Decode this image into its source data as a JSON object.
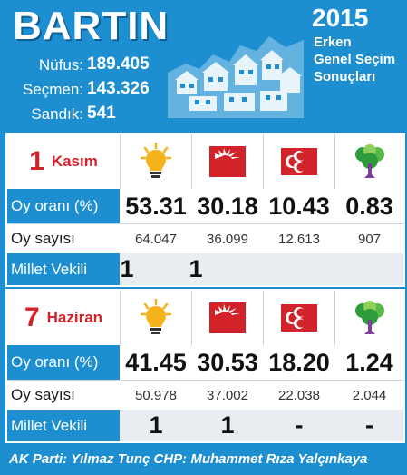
{
  "header": {
    "title": "BARTIN",
    "year": "2015",
    "subtitle_lines": [
      "Erken",
      "Genel Seçim",
      "Sonuçları"
    ],
    "stats": [
      {
        "label": "Nüfus:",
        "value": "189.405"
      },
      {
        "label": "Seçmen:",
        "value": "143.326"
      },
      {
        "label": "Sandık:",
        "value": "541"
      }
    ]
  },
  "parties": [
    {
      "icon": "ak-parti-logo-icon"
    },
    {
      "icon": "chp-logo-icon"
    },
    {
      "icon": "mhp-logo-icon"
    },
    {
      "icon": "hdp-logo-icon"
    }
  ],
  "elections": [
    {
      "date_num": "1",
      "date_month": "Kasım",
      "rows": {
        "oy_orani": {
          "label": "Oy oranı (%)",
          "values": [
            "53.31",
            "30.18",
            "10.43",
            "0.83"
          ]
        },
        "oy_sayisi": {
          "label": "Oy sayısı",
          "values": [
            "64.047",
            "36.099",
            "12.613",
            "907"
          ]
        },
        "milletvekili": {
          "label": "Millet Vekili",
          "values": [
            "1",
            "1",
            "",
            ""
          ]
        }
      }
    },
    {
      "date_num": "7",
      "date_month": "Haziran",
      "rows": {
        "oy_orani": {
          "label": "Oy oranı (%)",
          "values": [
            "41.45",
            "30.53",
            "18.20",
            "1.24"
          ]
        },
        "oy_sayisi": {
          "label": "Oy sayısı",
          "values": [
            "50.978",
            "37.002",
            "22.038",
            "2.044"
          ]
        },
        "milletvekili": {
          "label": "Millet Vekili",
          "values": [
            "1",
            "1",
            "-",
            "-"
          ]
        }
      }
    }
  ],
  "footer": {
    "text": "AK Parti: Yılmaz Tunç CHP: Muhammet Rıza Yalçınkaya"
  },
  "colors": {
    "brand_blue": "#1d8fd1",
    "party_red": "#d2232a",
    "ak_yellow": "#f6b21a"
  }
}
